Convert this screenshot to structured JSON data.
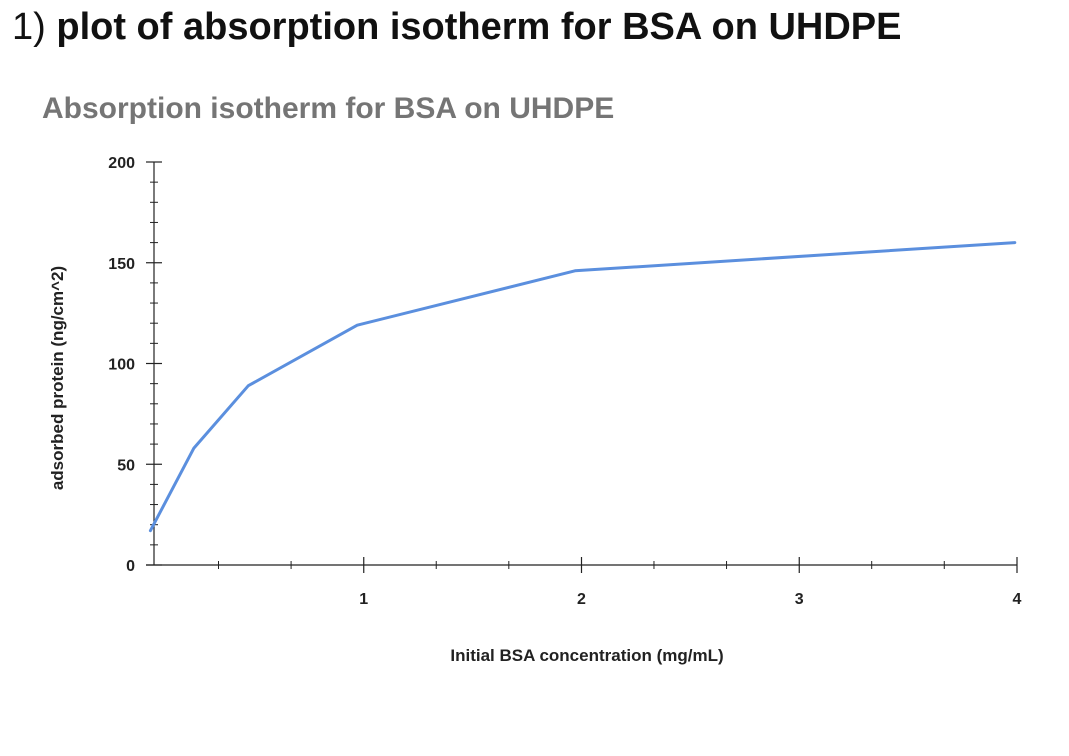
{
  "heading": {
    "number": "1)",
    "text": "plot of absorption isotherm for BSA on UHDPE"
  },
  "chart_data": {
    "type": "line",
    "title": "Absorption isotherm for BSA on UHDPE",
    "xlabel": "Initial BSA concentration (mg/mL)",
    "ylabel": "adsorbed protein (ng/cm^2)",
    "xlim": [
      0,
      4
    ],
    "ylim": [
      0,
      200
    ],
    "xticks": [
      1,
      2,
      3,
      4
    ],
    "yticks": [
      0,
      50,
      100,
      150,
      200
    ],
    "grid": false,
    "legend": "none",
    "line_color": "#5b8fde",
    "series": [
      {
        "x": [
          0.02,
          0.22,
          0.47,
          0.97,
          1.97,
          3.99
        ],
        "y": [
          17,
          58,
          89,
          119,
          146,
          160
        ]
      }
    ]
  }
}
